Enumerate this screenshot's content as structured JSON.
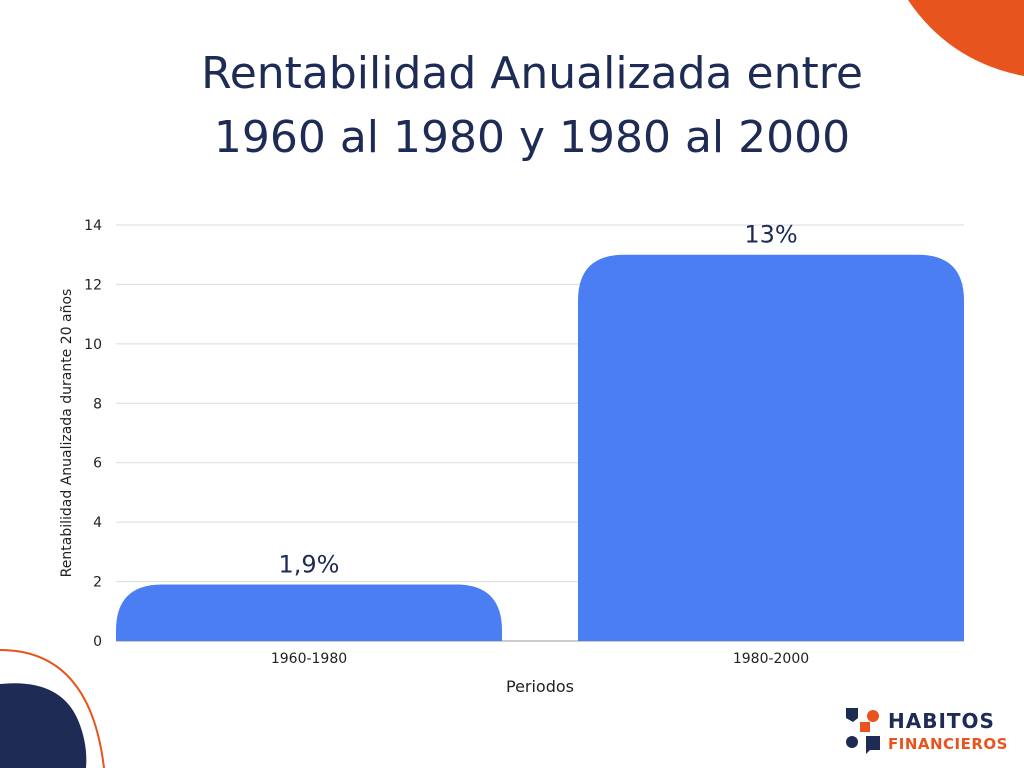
{
  "chart_data": {
    "type": "bar",
    "title_lines": [
      "Rentabilidad Anualizada entre",
      "1960 al 1980 y 1980 al 2000"
    ],
    "categories": [
      "1960-1980",
      "1980-2000"
    ],
    "values": [
      1.9,
      13
    ],
    "value_labels": [
      "1,9%",
      "13%"
    ],
    "xlabel": "Periodos",
    "ylabel": "Rentabilidad Anualizada durante 20 años",
    "ylim": [
      0,
      14
    ],
    "yticks": [
      "0",
      "2",
      "4",
      "6",
      "8",
      "10",
      "12",
      "14"
    ],
    "grid": true,
    "colors": {
      "bar": "#4a7ef2",
      "title": "#1d2b55",
      "accent": "#e8541e",
      "navy": "#1d2b55"
    }
  },
  "brand": {
    "line1": "HABITOS",
    "line2": "FINANCIEROS",
    "icon": "habitos-financieros-logo-icon"
  }
}
